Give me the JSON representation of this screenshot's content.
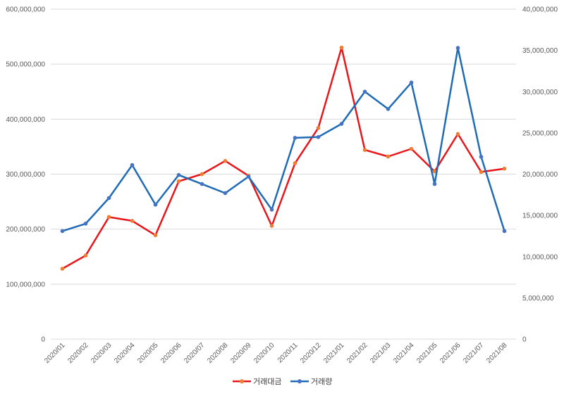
{
  "chart_data": {
    "type": "line",
    "title": "",
    "x": [
      "2020/01",
      "2020/02",
      "2020/03",
      "2020/04",
      "2020/05",
      "2020/06",
      "2020/07",
      "2020/08",
      "2020/09",
      "2020/10",
      "2020/11",
      "2020/12",
      "2021/01",
      "2021/02",
      "2021/03",
      "2021/04",
      "2021/05",
      "2021/06",
      "2021/07",
      "2021/08"
    ],
    "y_left_ticks": [
      "0",
      "100,000,000",
      "200,000,000",
      "300,000,000",
      "400,000,000",
      "500,000,000",
      "600,000,000"
    ],
    "y_right_ticks": [
      "0",
      "5,000,000",
      "10,000,000",
      "15,000,000",
      "20,000,000",
      "25,000,000",
      "30,000,000",
      "35,000,000",
      "40,000,000"
    ],
    "ylim_left": [
      0,
      600000000
    ],
    "ylim_right": [
      0,
      40000000
    ],
    "grid": true,
    "legend_position": "bottom",
    "series": [
      {
        "name": "거래대금",
        "axis": "left",
        "color": "#e8161b",
        "marker_color": "#ed7d31",
        "values": [
          128000000,
          152000000,
          222000000,
          215000000,
          189000000,
          287000000,
          300000000,
          324000000,
          297000000,
          206000000,
          320000000,
          384000000,
          530000000,
          344000000,
          332000000,
          346000000,
          305000000,
          373000000,
          304000000,
          310000000
        ]
      },
      {
        "name": "거래량",
        "axis": "right",
        "color": "#1f6bb5",
        "marker_color": "#4472c4",
        "values": [
          13100000,
          14000000,
          17100000,
          21100000,
          16300000,
          19900000,
          18800000,
          17700000,
          19700000,
          15700000,
          24400000,
          24500000,
          26100000,
          30000000,
          27900000,
          31100000,
          18800000,
          35300000,
          22100000,
          13100000
        ]
      }
    ]
  }
}
